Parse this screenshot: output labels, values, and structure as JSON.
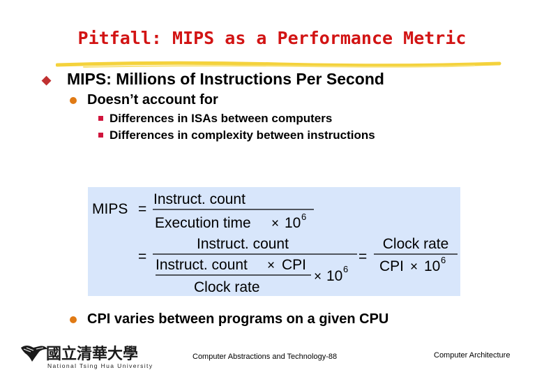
{
  "slide": {
    "title": "Pitfall: MIPS as a Performance Metric",
    "bullet1": "MIPS: Millions of Instructions Per Second",
    "sub1": "Doesn’t account for",
    "sub1_items": [
      "Differences in ISAs between computers",
      "Differences in complexity between instructions"
    ],
    "sub2": "CPI varies between programs on a given CPU"
  },
  "formula": {
    "lhs": "MIPS",
    "eq": "=",
    "f1_num": "Instruct. count",
    "f1_den": "Execution time",
    "times": "×",
    "ten": "10",
    "exp": "6",
    "f2_num": "Instruct. count",
    "f2_den_num": "Instruct. count",
    "f2_den_cpi": "CPI",
    "f2_den_den": "Clock rate",
    "f3_num": "Clock rate",
    "f3_den": "CPI"
  },
  "footer": {
    "university_chinese": "國立清華大學",
    "university_english": "National Tsing Hua University",
    "center": "Computer Abstractions and Technology-88",
    "right": "Computer Architecture"
  },
  "colors": {
    "title": "#d21414",
    "underline": "#f4d23c",
    "formula_bg": "#d8e6fb",
    "bullet_dot": "#e07a14",
    "bullet_square": "#d0143c"
  }
}
